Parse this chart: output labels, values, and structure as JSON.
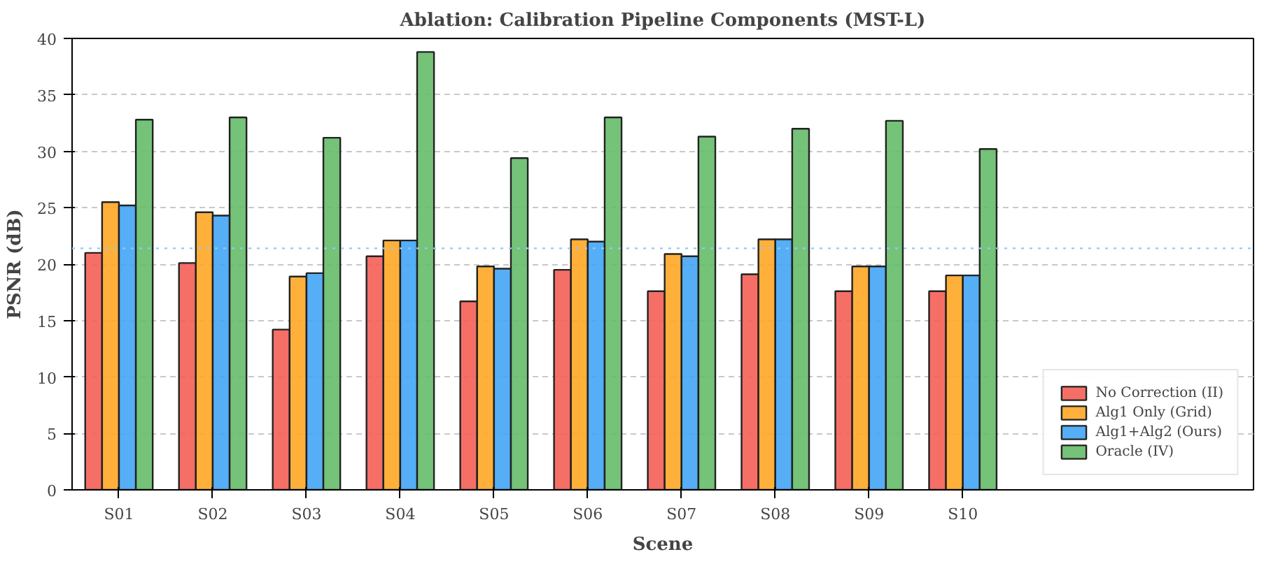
{
  "chart_data": {
    "type": "bar",
    "title": "Ablation: Calibration Pipeline Components (MST-L)",
    "xlabel": "Scene",
    "ylabel": "PSNR (dB)",
    "categories": [
      "S01",
      "S02",
      "S03",
      "S04",
      "S05",
      "S06",
      "S07",
      "S08",
      "S09",
      "S10"
    ],
    "series": [
      {
        "name": "No Correction (II)",
        "color": "#f45f57",
        "values": [
          21.0,
          20.1,
          14.2,
          20.7,
          16.7,
          19.5,
          17.6,
          19.1,
          17.6,
          17.6
        ]
      },
      {
        "name": "Alg1 Only (Grid)",
        "color": "#ffa726",
        "values": [
          25.5,
          24.6,
          18.9,
          22.1,
          19.8,
          22.2,
          20.9,
          22.2,
          19.8,
          19.0
        ]
      },
      {
        "name": "Alg1+Alg2 (Ours)",
        "color": "#42a5f5",
        "values": [
          25.2,
          24.3,
          19.2,
          22.1,
          19.6,
          22.0,
          20.7,
          22.2,
          19.8,
          19.0
        ]
      },
      {
        "name": "Oracle (IV)",
        "color": "#66bb6a",
        "values": [
          32.8,
          33.0,
          31.2,
          38.8,
          29.4,
          33.0,
          31.3,
          32.0,
          32.7,
          30.2
        ]
      }
    ],
    "ylim": [
      0,
      40
    ],
    "yticks": [
      0,
      5,
      10,
      15,
      20,
      25,
      30,
      35,
      40
    ],
    "grid": "y",
    "legend": "bottom right",
    "ref_lines": [
      {
        "axis": "y",
        "value": 21.4,
        "color": "#90caf9",
        "line_style": "dotted"
      }
    ]
  }
}
